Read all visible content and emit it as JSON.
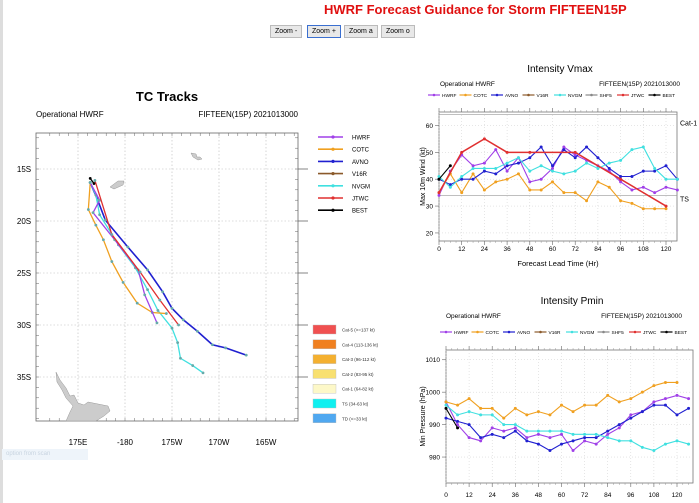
{
  "page_title": "HWRF Forecast Guidance for Storm FIFTEEN15P",
  "zoom_buttons": [
    "Zoom -",
    "Zoom +",
    "Zoom a",
    "Zoom o"
  ],
  "caption": "option from scan",
  "colors": {
    "HWRF": "#a040e8",
    "COTC": "#f0a020",
    "AVNO": "#2020d0",
    "V16R": "#8b5a2b",
    "NVGM": "#40e0e0",
    "SHF5": "#888888",
    "JTWC": "#e03030",
    "BEST": "#000000"
  },
  "tracks": {
    "title": "TC Tracks",
    "left_sub": "Operational HWRF",
    "right_sub": "FIFTEEN(15P) 2021013000",
    "lat_ticks": [
      "15S",
      "20S",
      "25S",
      "30S",
      "35S"
    ],
    "lon_ticks": [
      "175E",
      "-180",
      "175W",
      "170W",
      "165W"
    ],
    "legend": [
      "HWRF",
      "COTC",
      "AVNO",
      "V16R",
      "NVGM",
      "JTWC",
      "BEST"
    ],
    "categories": [
      {
        "label": "Cat-5 (>=137 kt)",
        "color": "#f05050"
      },
      {
        "label": "Cat-4 (113-136 kt)",
        "color": "#f08020"
      },
      {
        "label": "Cat-3 (96-112 kt)",
        "color": "#f4b030"
      },
      {
        "label": "Cat-2 (83-95 kt)",
        "color": "#f8e070"
      },
      {
        "label": "Cat-1 (64-82 kt)",
        "color": "#fdf8c8"
      },
      {
        "label": "TS (34-63 kt)",
        "color": "#10f0f0"
      },
      {
        "label": "TD (<=33 kt)",
        "color": "#50a8f0"
      }
    ],
    "series": {
      "AVNO": [
        [
          176.3,
          16.3
        ],
        [
          177.1,
          18.0
        ],
        [
          177.9,
          19.9
        ],
        [
          180.3,
          22.5
        ],
        [
          182.4,
          24.7
        ],
        [
          184.0,
          26.8
        ],
        [
          185.0,
          28.4
        ],
        [
          186.2,
          29.5
        ],
        [
          187.7,
          30.6
        ],
        [
          189.3,
          31.9
        ],
        [
          190.7,
          32.2
        ],
        [
          192.9,
          32.9
        ]
      ],
      "NVGM": [
        [
          176.3,
          16.3
        ],
        [
          176.9,
          17.5
        ],
        [
          177.3,
          19.4
        ],
        [
          179.3,
          22.3
        ],
        [
          181.1,
          24.5
        ],
        [
          182.4,
          26.6
        ],
        [
          183.5,
          28.6
        ],
        [
          185.0,
          30.3
        ],
        [
          185.6,
          31.7
        ],
        [
          185.9,
          33.2
        ],
        [
          187.2,
          33.9
        ],
        [
          188.3,
          34.6
        ]
      ],
      "COTC": [
        [
          176.3,
          16.3
        ],
        [
          176.1,
          18.9
        ],
        [
          176.9,
          20.4
        ],
        [
          177.7,
          21.8
        ],
        [
          178.6,
          23.9
        ],
        [
          179.8,
          25.9
        ],
        [
          181.3,
          27.9
        ],
        [
          182.9,
          28.8
        ],
        [
          184.4,
          28.9
        ]
      ],
      "HWRF": [
        [
          176.3,
          16.3
        ],
        [
          177.3,
          18.0
        ],
        [
          176.6,
          19.2
        ],
        [
          178.9,
          21.8
        ],
        [
          181.4,
          24.7
        ],
        [
          182.1,
          27.1
        ],
        [
          183.4,
          29.8
        ]
      ],
      "JTWC": [
        [
          176.8,
          16.1
        ],
        [
          178.6,
          21.3
        ],
        [
          181.6,
          24.9
        ],
        [
          183.7,
          27.6
        ],
        [
          185.7,
          30.0
        ]
      ],
      "BEST": [
        [
          176.3,
          15.9
        ],
        [
          176.7,
          16.4
        ]
      ]
    }
  },
  "chart_data": [
    {
      "type": "line",
      "title": "Intensity Vmax",
      "left_sub": "Operational HWRF",
      "right_sub": "FIFTEEN(15P) 2021013000",
      "xlabel": "Forecast Lead Time (Hr)",
      "ylabel": "Max 10m Wind (kt)",
      "xlim": [
        0,
        126
      ],
      "ylim": [
        17,
        65
      ],
      "xticks": [
        0,
        12,
        24,
        36,
        48,
        60,
        72,
        84,
        96,
        108,
        120
      ],
      "yticks": [
        20,
        30,
        40,
        50,
        60
      ],
      "ref_lines": [
        {
          "label": "Cat-1",
          "value": 64
        },
        {
          "label": "TS",
          "value": 34
        }
      ],
      "legend": [
        "HWRF",
        "COTC",
        "AVNO",
        "V16R",
        "NVGM",
        "SHF5",
        "JTWC",
        "BEST"
      ],
      "series": [
        {
          "name": "HWRF",
          "x": [
            0,
            6,
            12,
            18,
            24,
            30,
            36,
            42,
            48,
            54,
            60,
            66,
            72,
            78,
            84,
            90,
            96,
            102,
            108,
            114,
            120,
            126
          ],
          "values": [
            34,
            43,
            49,
            45,
            46,
            51,
            43,
            48,
            39,
            40,
            44,
            52,
            49,
            47,
            45,
            43,
            39,
            36,
            37,
            35,
            37,
            36
          ]
        },
        {
          "name": "COTC",
          "x": [
            0,
            6,
            12,
            18,
            24,
            30,
            36,
            42,
            48,
            54,
            60,
            66,
            72,
            78,
            84,
            90,
            96,
            102,
            108,
            114,
            120
          ],
          "values": [
            35,
            42,
            35,
            42,
            36,
            39,
            40,
            42,
            36,
            36,
            39,
            35,
            35,
            32,
            39,
            37,
            32,
            31,
            29,
            29,
            29
          ]
        },
        {
          "name": "AVNO",
          "x": [
            0,
            6,
            12,
            18,
            24,
            30,
            36,
            42,
            48,
            54,
            60,
            66,
            72,
            78,
            84,
            90,
            96,
            102,
            108,
            114,
            120,
            126
          ],
          "values": [
            40,
            38,
            40,
            40,
            43,
            42,
            45,
            46,
            48,
            52,
            45,
            51,
            48,
            52,
            48,
            44,
            41,
            41,
            43,
            43,
            45,
            40
          ]
        },
        {
          "name": "NVGM",
          "x": [
            0,
            6,
            12,
            18,
            24,
            30,
            36,
            42,
            48,
            54,
            60,
            66,
            72,
            78,
            84,
            90,
            96,
            102,
            108,
            114,
            120,
            126
          ],
          "values": [
            41,
            37,
            41,
            44,
            44,
            44,
            46,
            48,
            43,
            45,
            43,
            42,
            43,
            46,
            44,
            46,
            47,
            51,
            52,
            44,
            40,
            40
          ]
        },
        {
          "name": "JTWC",
          "x": [
            0,
            12,
            24,
            36,
            48,
            72,
            96,
            120
          ],
          "values": [
            35,
            50,
            55,
            50,
            50,
            50,
            40,
            30
          ]
        },
        {
          "name": "BEST",
          "x": [
            0,
            6
          ],
          "values": [
            40,
            45
          ]
        }
      ]
    },
    {
      "type": "line",
      "title": "Intensity Pmin",
      "left_sub": "Operational HWRF",
      "right_sub": "FIFTEEN(15P) 2021013000",
      "xlabel": "",
      "ylabel": "Min Pressure (hPa)",
      "xlim": [
        0,
        126
      ],
      "ylim": [
        972,
        1013
      ],
      "xticks": [
        0,
        12,
        24,
        36,
        48,
        60,
        72,
        84,
        96,
        108,
        120
      ],
      "yticks": [
        980,
        990,
        1000,
        1010
      ],
      "legend": [
        "HWRF",
        "COTC",
        "AVNO",
        "V16R",
        "NVGM",
        "SHF5",
        "JTWC",
        "BEST"
      ],
      "series": [
        {
          "name": "HWRF",
          "x": [
            0,
            6,
            12,
            18,
            24,
            30,
            36,
            42,
            48,
            54,
            60,
            66,
            72,
            78,
            84,
            90,
            96,
            102,
            108,
            114,
            120,
            126
          ],
          "values": [
            997,
            990,
            986,
            985,
            989,
            988,
            989,
            986,
            987,
            986,
            987,
            982,
            985,
            984,
            987,
            989,
            993,
            994,
            997,
            998,
            999,
            998
          ]
        },
        {
          "name": "COTC",
          "x": [
            0,
            6,
            12,
            18,
            24,
            30,
            36,
            42,
            48,
            54,
            60,
            66,
            72,
            78,
            84,
            90,
            96,
            102,
            108,
            114,
            120
          ],
          "values": [
            997,
            996,
            998,
            995,
            995,
            992,
            995,
            993,
            994,
            993,
            996,
            994,
            996,
            996,
            999,
            997,
            998,
            1000,
            1002,
            1003,
            1003
          ]
        },
        {
          "name": "AVNO",
          "x": [
            0,
            6,
            12,
            18,
            24,
            30,
            36,
            42,
            48,
            54,
            60,
            66,
            72,
            78,
            84,
            90,
            96,
            102,
            108,
            114,
            120,
            126
          ],
          "values": [
            992,
            991,
            990,
            986,
            987,
            986,
            988,
            985,
            984,
            982,
            984,
            985,
            986,
            986,
            988,
            990,
            992,
            994,
            996,
            996,
            993,
            995
          ]
        },
        {
          "name": "NVGM",
          "x": [
            0,
            6,
            12,
            18,
            24,
            30,
            36,
            42,
            48,
            54,
            60,
            66,
            72,
            78,
            84,
            90,
            96,
            102,
            108,
            114,
            120,
            126
          ],
          "values": [
            996,
            993,
            994,
            993,
            993,
            990,
            990,
            988,
            988,
            988,
            988,
            987,
            987,
            987,
            986,
            985,
            985,
            983,
            982,
            984,
            985,
            984
          ]
        },
        {
          "name": "BEST",
          "x": [
            0,
            6
          ],
          "values": [
            995,
            989
          ]
        }
      ]
    }
  ]
}
